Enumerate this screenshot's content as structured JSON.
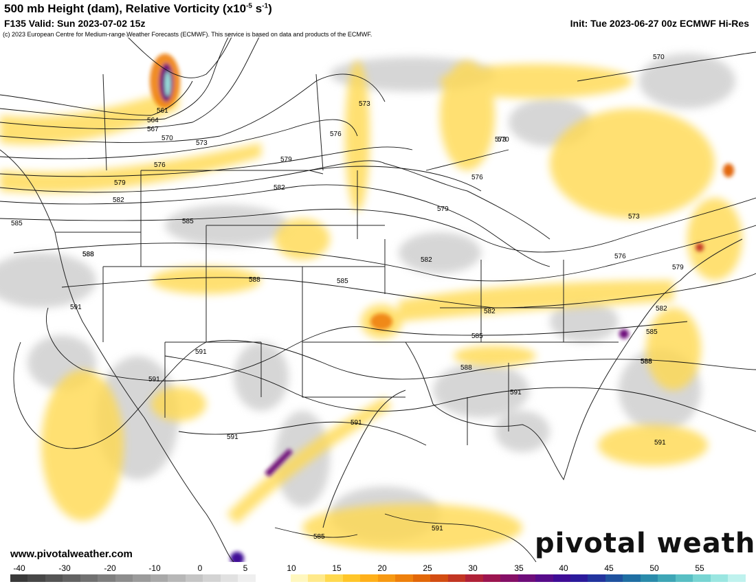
{
  "header": {
    "title_main": "500 mb Height (dam), Relative Vorticity (x10",
    "title_exp": "-5",
    "title_unit": " s",
    "title_exp2": "-1",
    "title_end": ")",
    "valid": "F135 Valid: Sun 2023-07-02 15z",
    "init": "Init: Tue 2023-06-27 00z ECMWF Hi-Res",
    "copyright": "(c) 2023 European Centre for Medium-range Weather Forecasts (ECMWF). This service is based on data and products of the ECMWF."
  },
  "footer": {
    "url": "www.pivotalweather.com",
    "logo": "pivotal weather"
  },
  "colorbar": {
    "ticks": [
      "-40",
      "-30",
      "-20",
      "-10",
      "0",
      "5",
      "10",
      "15",
      "20",
      "25",
      "30",
      "35",
      "40",
      "45",
      "50",
      "55"
    ],
    "colors": [
      "#3a3a3a",
      "#474747",
      "#555555",
      "#636363",
      "#717171",
      "#7f7f7f",
      "#8d8d8d",
      "#9b9b9b",
      "#a9a9a9",
      "#b7b7b7",
      "#c5c5c5",
      "#d3d3d3",
      "#e1e1e1",
      "#efefef",
      "#ffffff",
      "#ffffff",
      "#fff7bf",
      "#ffe98a",
      "#ffd94f",
      "#ffc629",
      "#ffb01a",
      "#f79912",
      "#ee800c",
      "#e26708",
      "#d34d12",
      "#c23623",
      "#b02238",
      "#9c154f",
      "#850f66",
      "#6e0d7a",
      "#570c8a",
      "#3f0d96",
      "#2b1a9c",
      "#22349e",
      "#1f529f",
      "#1f6fa3",
      "#2a8bab",
      "#3ea6b6",
      "#58bfc4",
      "#78d5d3",
      "#9ae6e1",
      "#bff2ee"
    ]
  },
  "contours": {
    "labels": [
      "570",
      "561",
      "564",
      "567",
      "570",
      "573",
      "576",
      "579",
      "582",
      "585",
      "573",
      "576",
      "579",
      "582",
      "585",
      "588",
      "591",
      "579",
      "582",
      "585",
      "588",
      "591",
      "570",
      "573",
      "576",
      "579",
      "582",
      "585",
      "588",
      "591",
      "573",
      "576",
      "588",
      "591",
      "582",
      "585",
      "588",
      "591",
      "591",
      "591",
      "591",
      "585",
      "588"
    ]
  },
  "colors": {
    "contour": "#111111",
    "vort_pos": "#ffc629",
    "vort_neg": "#bdbdbd"
  }
}
